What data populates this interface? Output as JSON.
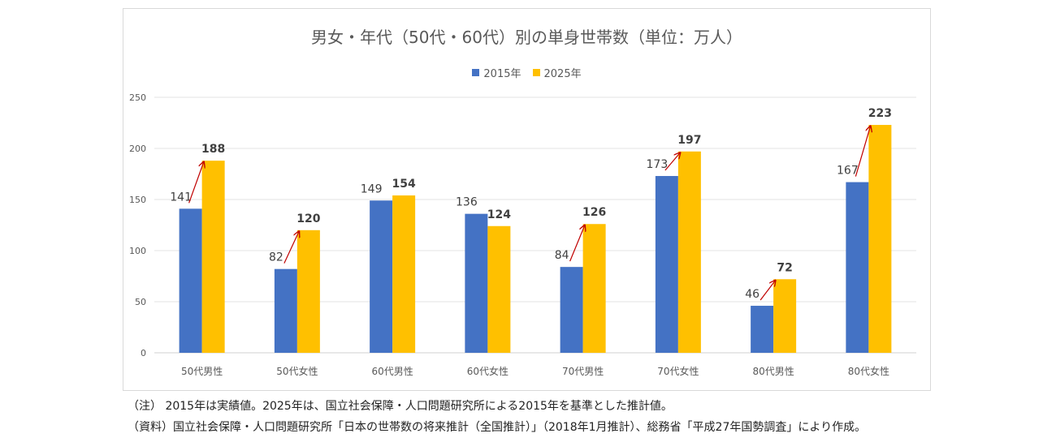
{
  "chart_data": {
    "type": "bar",
    "title": "男女・年代（50代・60代）別の単身世帯数（単位：万人）",
    "categories": [
      "50代男性",
      "50代女性",
      "60代男性",
      "60代女性",
      "70代男性",
      "70代女性",
      "80代男性",
      "80代女性"
    ],
    "series": [
      {
        "name": "2015年",
        "values": [
          141,
          82,
          149,
          136,
          84,
          173,
          46,
          167
        ],
        "color": "#4472C4"
      },
      {
        "name": "2025年",
        "values": [
          188,
          120,
          154,
          124,
          126,
          197,
          72,
          223
        ],
        "color": "#FFC000"
      }
    ],
    "ylim": [
      0,
      250
    ],
    "yticks": [
      0,
      50,
      100,
      150,
      200,
      250
    ],
    "grid": true,
    "legend_position": "top",
    "annotation_color": "#C00000",
    "arrow_categories": [
      "50代男性",
      "50代女性",
      "70代男性",
      "70代女性",
      "80代男性",
      "80代女性"
    ]
  },
  "notes": {
    "note1": "（注） 2015年は実績値。2025年は、国立社会保障・人口問題研究所による2015年を基準とした推計値。",
    "note2": "（資料）国立社会保障・人口問題研究所「日本の世帯数の将来推計（全国推計）」（2018年1月推計）、総務省「平成27年国勢調査」により作成。"
  }
}
